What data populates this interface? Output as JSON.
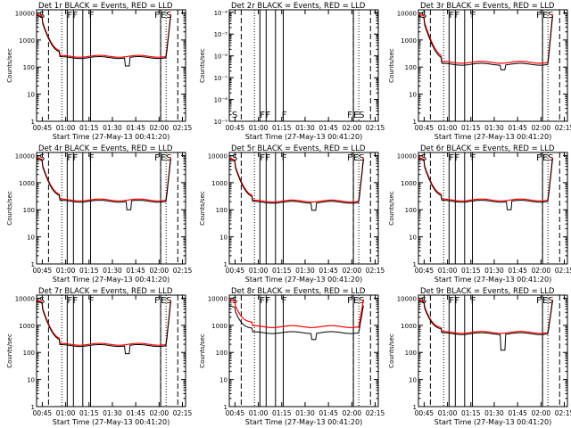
{
  "chart_data": {
    "type": "line",
    "grid_rows": 3,
    "grid_cols": 3,
    "xlabel": "Start Time (27-May-13 00:41:20)",
    "ylabel": "Counts/sec",
    "x_tick_labels": [
      "00:45",
      "01:00",
      "01:15",
      "01:30",
      "01:45",
      "02:00",
      "02:15"
    ],
    "x_tick_minutes": [
      45,
      60,
      75,
      90,
      105,
      120,
      135
    ],
    "x_range_minutes": [
      41.33,
      137
    ],
    "y_scale": "log",
    "y_ticks": [
      1,
      10,
      100,
      1000,
      10000
    ],
    "y_tick_labels": [
      "1",
      "10",
      "100",
      "1000",
      "10000"
    ],
    "ylim": [
      1,
      13000
    ],
    "ylim_empty": [
      1e-09,
      0.00013
    ],
    "y_ticks_empty": [
      1e-09,
      1e-08,
      1e-07,
      1e-06,
      1e-05,
      0.0001
    ],
    "y_tick_labels_empty": [
      "10⁻⁹",
      "10⁻⁸",
      "10⁻⁷",
      "10⁻⁶",
      "10⁻⁵",
      "10⁻⁴"
    ],
    "series_colors": {
      "events": "#000000",
      "lld": "#ff0000"
    },
    "flag_labels": {
      "saa_start": "S",
      "flare": "F",
      "eclipse_start": "E",
      "saa_end": "S"
    },
    "event_lines": {
      "dashed": [
        49,
        121,
        132
      ],
      "dotted": [
        57.5,
        124.5
      ],
      "solid": [
        61,
        65,
        71,
        76,
        121
      ]
    },
    "panels": [
      {
        "title": "Det 1r  BLACK = Events, RED = LLD",
        "flags": "S  FF  F   F ES",
        "base": 250,
        "top": 9000,
        "events_ratio": 0.9,
        "dip_start": 98,
        "dip_end": 101,
        "dip_value": 110,
        "empty": false
      },
      {
        "title": "Det 2r  BLACK = Events, RED = LLD",
        "flags": "S  FF  F   F ES",
        "base": 0,
        "top": 0,
        "events_ratio": 0,
        "dip_start": 0,
        "dip_end": 0,
        "dip_value": 0,
        "empty": true
      },
      {
        "title": "Det 3r  BLACK = Events, RED = LLD",
        "flags": "S  FF  F   F ES",
        "base": 150,
        "top": 9000,
        "events_ratio": 0.85,
        "dip_start": 94,
        "dip_end": 97,
        "dip_value": 80,
        "empty": false
      },
      {
        "title": "Det 4r  BLACK = Events, RED = LLD",
        "flags": "S  FF  F   F ES",
        "base": 230,
        "top": 8500,
        "events_ratio": 0.9,
        "dip_start": 99,
        "dip_end": 102,
        "dip_value": 100,
        "empty": false
      },
      {
        "title": "Det 5r  BLACK = Events, RED = LLD",
        "flags": "S  FF  F   F ES",
        "base": 210,
        "top": 8000,
        "events_ratio": 0.9,
        "dip_start": 94,
        "dip_end": 97,
        "dip_value": 95,
        "empty": false
      },
      {
        "title": "Det 6r  BLACK = Events, RED = LLD",
        "flags": "S  FF  F   F ES",
        "base": 230,
        "top": 8500,
        "events_ratio": 0.9,
        "dip_start": 98,
        "dip_end": 101,
        "dip_value": 100,
        "empty": false
      },
      {
        "title": "Det 7r  BLACK = Events, RED = LLD",
        "flags": "S  FF  F   F ES",
        "base": 200,
        "top": 8500,
        "events_ratio": 0.9,
        "dip_start": 98,
        "dip_end": 101,
        "dip_value": 90,
        "empty": false
      },
      {
        "title": "Det 8r  BLACK = Events, RED = LLD",
        "flags": "S  FF  F   F ES",
        "base": 900,
        "top": 9000,
        "events_ratio": 0.6,
        "dip_start": 94,
        "dip_end": 97,
        "dip_value": 300,
        "empty": false
      },
      {
        "title": "Det 9r  BLACK = Events, RED = LLD",
        "flags": "S  FF  F   F ES",
        "base": 550,
        "top": 9000,
        "events_ratio": 0.9,
        "dip_start": 94,
        "dip_end": 97,
        "dip_value": 120,
        "empty": false
      }
    ]
  }
}
